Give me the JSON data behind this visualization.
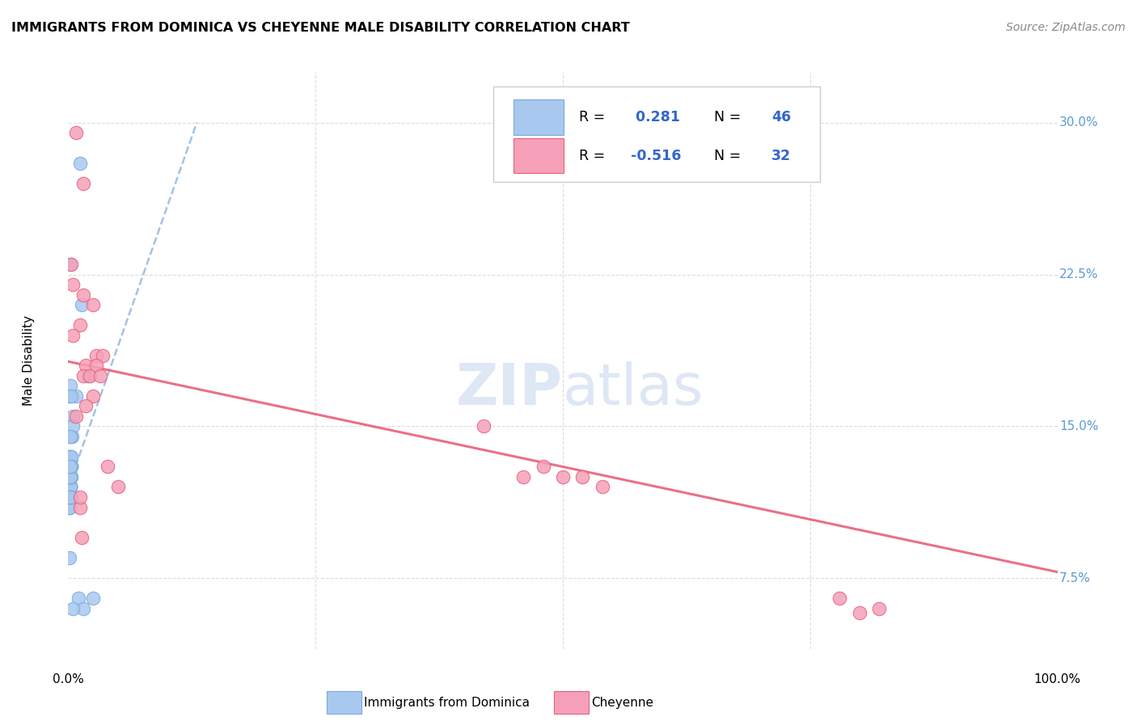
{
  "title": "IMMIGRANTS FROM DOMINICA VS CHEYENNE MALE DISABILITY CORRELATION CHART",
  "source": "Source: ZipAtlas.com",
  "ylabel": "Male Disability",
  "yticks": [
    0.075,
    0.15,
    0.225,
    0.3
  ],
  "ytick_labels": [
    "7.5%",
    "15.0%",
    "22.5%",
    "30.0%"
  ],
  "xlim": [
    0.0,
    1.0
  ],
  "ylim": [
    0.04,
    0.325
  ],
  "legend_label1": "Immigrants from Dominica",
  "legend_label2": "Cheyenne",
  "color_blue": "#a8c8f0",
  "color_pink": "#f5a0b8",
  "trendline_blue_color": "#7aaad8",
  "trendline_pink_color": "#e8607a",
  "blue_x": [
    0.002,
    0.004,
    0.001,
    0.002,
    0.005,
    0.008,
    0.002,
    0.003,
    0.002,
    0.001,
    0.001,
    0.002,
    0.002,
    0.003,
    0.002,
    0.002,
    0.002,
    0.001,
    0.001,
    0.002,
    0.003,
    0.005,
    0.002,
    0.002,
    0.001,
    0.002,
    0.003,
    0.002,
    0.002,
    0.002,
    0.003,
    0.002,
    0.002,
    0.002,
    0.002,
    0.002,
    0.003,
    0.002,
    0.02,
    0.014,
    0.012,
    0.01,
    0.025,
    0.015,
    0.005,
    0.001
  ],
  "blue_y": [
    0.23,
    0.145,
    0.135,
    0.145,
    0.155,
    0.165,
    0.125,
    0.13,
    0.12,
    0.115,
    0.11,
    0.115,
    0.12,
    0.13,
    0.12,
    0.115,
    0.12,
    0.115,
    0.11,
    0.12,
    0.125,
    0.15,
    0.145,
    0.135,
    0.165,
    0.17,
    0.165,
    0.125,
    0.125,
    0.135,
    0.135,
    0.115,
    0.115,
    0.125,
    0.115,
    0.115,
    0.13,
    0.13,
    0.175,
    0.21,
    0.28,
    0.065,
    0.065,
    0.06,
    0.06,
    0.085
  ],
  "pink_x": [
    0.008,
    0.005,
    0.025,
    0.015,
    0.012,
    0.018,
    0.028,
    0.035,
    0.015,
    0.028,
    0.022,
    0.032,
    0.025,
    0.018,
    0.42,
    0.5,
    0.52,
    0.54,
    0.48,
    0.46,
    0.05,
    0.04,
    0.012,
    0.014,
    0.003,
    0.005,
    0.008,
    0.012,
    0.78,
    0.82,
    0.8,
    0.015
  ],
  "pink_y": [
    0.295,
    0.22,
    0.21,
    0.215,
    0.2,
    0.18,
    0.185,
    0.185,
    0.175,
    0.18,
    0.175,
    0.175,
    0.165,
    0.16,
    0.15,
    0.125,
    0.125,
    0.12,
    0.13,
    0.125,
    0.12,
    0.13,
    0.11,
    0.095,
    0.23,
    0.195,
    0.155,
    0.115,
    0.065,
    0.06,
    0.058,
    0.27
  ],
  "blue_trendline_x0": 0.0,
  "blue_trendline_y0": 0.12,
  "blue_trendline_x1": 0.13,
  "blue_trendline_y1": 0.3,
  "pink_trendline_x0": 0.0,
  "pink_trendline_y0": 0.182,
  "pink_trendline_x1": 1.0,
  "pink_trendline_y1": 0.078
}
